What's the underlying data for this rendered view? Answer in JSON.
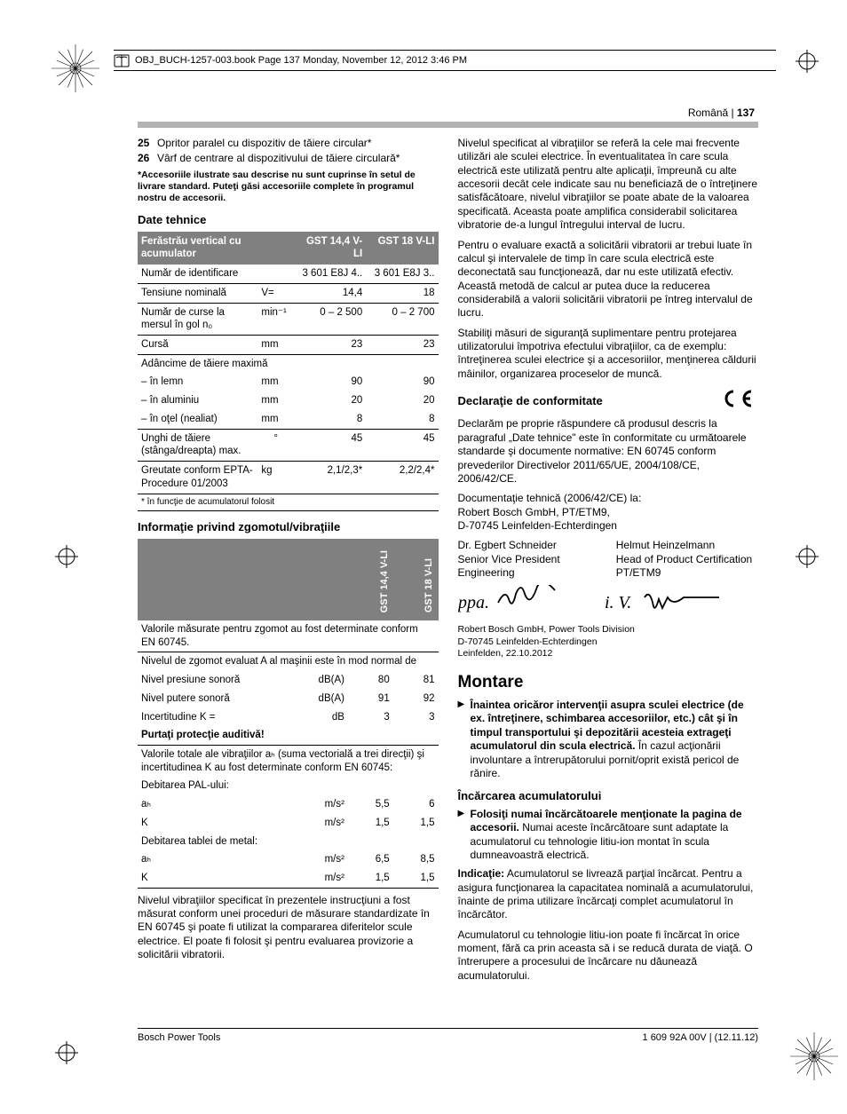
{
  "topbar": "OBJ_BUCH-1257-003.book  Page 137  Monday, November 12, 2012  3:46 PM",
  "header": {
    "lang": "Română",
    "page": "137"
  },
  "items": [
    {
      "n": "25",
      "t": "Opritor paralel cu dispozitiv de tăiere circular*"
    },
    {
      "n": "26",
      "t": "Vârf de centrare al dispozitivului de tăiere circulară*"
    }
  ],
  "accnote": "*Accesoriile ilustrate sau descrise nu sunt cuprinse în setul de livrare standard. Puteţi găsi accesoriile complete în programul nostru de accesorii.",
  "sec_spec": "Date tehnice",
  "spec": {
    "head": [
      "Ferăstrău vertical cu acumulator",
      "",
      "GST 14,4 V-LI",
      "GST 18 V-LI"
    ],
    "rows": [
      {
        "l": "Număr de identificare",
        "u": "",
        "a": "3 601 E8J 4..",
        "b": "3 601 E8J 3.."
      },
      {
        "l": "Tensiune nominală",
        "u": "V=",
        "a": "14,4",
        "b": "18"
      },
      {
        "l": "Număr de curse la mersul în gol n₀",
        "u": "min⁻¹",
        "a": "0 – 2 500",
        "b": "0 – 2 700"
      },
      {
        "l": "Cursă",
        "u": "mm",
        "a": "23",
        "b": "23"
      }
    ],
    "depth": {
      "label": "Adâncime de tăiere maximă",
      "sub": [
        {
          "l": "– în lemn",
          "u": "mm",
          "a": "90",
          "b": "90"
        },
        {
          "l": "– în aluminiu",
          "u": "mm",
          "a": "20",
          "b": "20"
        },
        {
          "l": "– în oţel (nealiat)",
          "u": "mm",
          "a": "8",
          "b": "8"
        }
      ]
    },
    "angle": {
      "l": "Unghi de tăiere (stânga/dreapta) max.",
      "u": "°",
      "a": "45",
      "b": "45"
    },
    "weight": {
      "l": "Greutate conform EPTA-Procedure 01/2003",
      "u": "kg",
      "a": "2,1/2,3*",
      "b": "2,2/2,4*"
    },
    "foot": "* în funcţie de acumulatorul folosit"
  },
  "sec_noise": "Informaţie privind zgomotul/vibraţiile",
  "noise": {
    "colA": "GST 14,4 V-LI",
    "colB": "GST 18 V-LI",
    "r1": "Valorile măsurate pentru zgomot au fost determinate conform EN 60745.",
    "r2": {
      "intro": "Nivelul de zgomot evaluat A al maşinii este în mod normal de",
      "rows": [
        {
          "l": "Nivel presiune sonoră",
          "u": "dB(A)",
          "a": "80",
          "b": "81"
        },
        {
          "l": "Nivel putere sonoră",
          "u": "dB(A)",
          "a": "91",
          "b": "92"
        },
        {
          "l": "Incertitudine K =",
          "u": "dB",
          "a": "3",
          "b": "3"
        }
      ],
      "warn": "Purtaţi protecţie auditivă!"
    },
    "r3": {
      "intro": "Valorile totale ale vibraţiilor aₕ (suma vectorială a trei direcţii) şi incertitudinea K au fost determinate conform EN 60745:",
      "g1": "Debitarea PAL-ului:",
      "g1rows": [
        {
          "l": "aₕ",
          "u": "m/s²",
          "a": "5,5",
          "b": "6"
        },
        {
          "l": "K",
          "u": "m/s²",
          "a": "1,5",
          "b": "1,5"
        }
      ],
      "g2": "Debitarea tablei de metal:",
      "g2rows": [
        {
          "l": "aₕ",
          "u": "m/s²",
          "a": "6,5",
          "b": "8,5"
        },
        {
          "l": "K",
          "u": "m/s²",
          "a": "1,5",
          "b": "1,5"
        }
      ]
    }
  },
  "p_after_noise": "Nivelul vibraţiilor specificat în prezentele instrucţiuni a fost măsurat conform unei proceduri de măsurare standardizate în EN 60745 şi poate fi utilizat la compararea diferitelor scule electrice. El poate fi folosit şi pentru evaluarea provizorie a solicitării vibratorii.",
  "right_p1": "Nivelul specificat al vibraţiilor se referă la cele mai frecvente utilizări ale sculei electrice. În eventualitatea în care scula electrică este utilizată pentru alte aplicaţii, împreună cu alte accesorii decât cele indicate sau nu beneficiază de o întreţinere satisfăcătoare, nivelul vibraţiilor se poate abate de la valoarea specificată. Aceasta poate amplifica considerabil solicitarea vibratorie de-a lungul întregului interval de lucru.",
  "right_p2": "Pentru o evaluare exactă a solicitării vibratorii ar trebui luate în calcul şi intervalele de timp în care scula electrică este deconectată sau funcţionează, dar nu este utilizată efectiv. Această metodă de calcul ar putea duce la reducerea considerabilă a valorii solicitării vibratorii pe întreg intervalul de lucru.",
  "right_p3": "Stabiliţi măsuri de siguranţă suplimentare pentru protejarea utilizatorului împotriva efectului vibraţiilor, ca de exemplu: întreţinerea sculei electrice şi a accesoriilor, menţinerea căldurii mâinilor, organizarea proceselor de muncă.",
  "sec_conf": "Declaraţie de conformitate",
  "conf_p1": "Declarăm pe proprie răspundere că produsul descris la paragraful „Date tehnice\" este în conformitate cu următoarele standarde şi documente normative: EN 60745 conform prevederilor Directivelor 2011/65/UE, 2004/108/CE, 2006/42/CE.",
  "conf_p2": "Documentaţie tehnică (2006/42/CE) la:\nRobert Bosch GmbH, PT/ETM9,\nD-70745 Leinfelden-Echterdingen",
  "sig": {
    "a": {
      "name": "Dr. Egbert Schneider",
      "t1": "Senior Vice President",
      "t2": "Engineering"
    },
    "b": {
      "name": "Helmut Heinzelmann",
      "t1": "Head of Product Certification",
      "t2": "PT/ETM9"
    }
  },
  "addr": "Robert Bosch GmbH, Power Tools Division\nD-70745 Leinfelden-Echterdingen\nLeinfelden, 22.10.2012",
  "sec_mount": "Montare",
  "mount_li1": {
    "b": "Înaintea oricăror intervenţii asupra sculei electrice (de ex. întreţinere, schimbarea accesoriilor, etc.) cât şi în timpul transportului şi depozitării acesteia extrageţi acumulatorul din scula electrică.",
    "t": " În cazul acţionării involuntare a întrerupătorului pornit/oprit există pericol de rănire."
  },
  "sec_charge": "Încărcarea acumulatorului",
  "charge_li1": {
    "b": "Folosiţi numai încărcătoarele menţionate la pagina de accesorii.",
    "t": " Numai aceste încărcătoare sunt adaptate la acumulatorul cu tehnologie litiu-ion montat în scula dumneavoastră electrică."
  },
  "charge_p1": {
    "b": "Indicaţie:",
    "t": " Acumulatorul se livrează parţial încărcat. Pentru a asigura funcţionarea la capacitatea nominală a acumulatorului, înainte de prima utilizare încărcaţi complet acumulatorul în încărcător."
  },
  "charge_p2": "Acumulatorul cu tehnologie litiu-ion poate fi încărcat în orice moment, fără ca prin aceasta să i se reducă durata de viaţă. O întrerupere a procesului de încărcare nu dăunează acumulatorului.",
  "footer": {
    "l": "Bosch Power Tools",
    "r": "1 609 92A 00V | (12.11.12)"
  },
  "colors": {
    "gray_band": "#b3b3b3",
    "table_head": "#808080"
  }
}
